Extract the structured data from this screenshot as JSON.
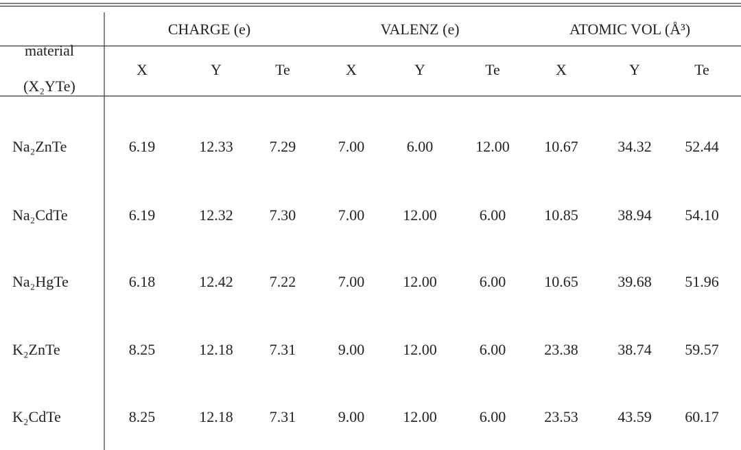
{
  "table": {
    "groups": [
      "CHARGE (e)",
      "VALENZ (e)",
      "ATOMIC VOL (Å³)"
    ],
    "row_header": [
      "material",
      "(X₂YTe)"
    ],
    "columns": [
      "X",
      "Y",
      "Te",
      "X",
      "Y",
      "Te",
      "X",
      "Y",
      "Te"
    ],
    "rows": [
      [
        "Na₂ZnTe",
        "6.19",
        "12.33",
        "7.29",
        "7.00",
        "6.00",
        "12.00",
        "10.67",
        "34.32",
        "52.44"
      ],
      [
        "Na₂CdTe",
        "6.19",
        "12.32",
        "7.30",
        "7.00",
        "12.00",
        "6.00",
        "10.85",
        "38.94",
        "54.10"
      ],
      [
        "Na₂HgTe",
        "6.18",
        "12.42",
        "7.22",
        "7.00",
        "12.00",
        "6.00",
        "10.65",
        "39.68",
        "51.96"
      ],
      [
        "K₂ZnTe",
        "8.25",
        "12.18",
        "7.31",
        "9.00",
        "12.00",
        "6.00",
        "23.38",
        "38.74",
        "59.57"
      ],
      [
        "K₂CdTe",
        "8.25",
        "12.18",
        "7.31",
        "9.00",
        "12.00",
        "6.00",
        "23.53",
        "43.59",
        "60.17"
      ]
    ]
  }
}
